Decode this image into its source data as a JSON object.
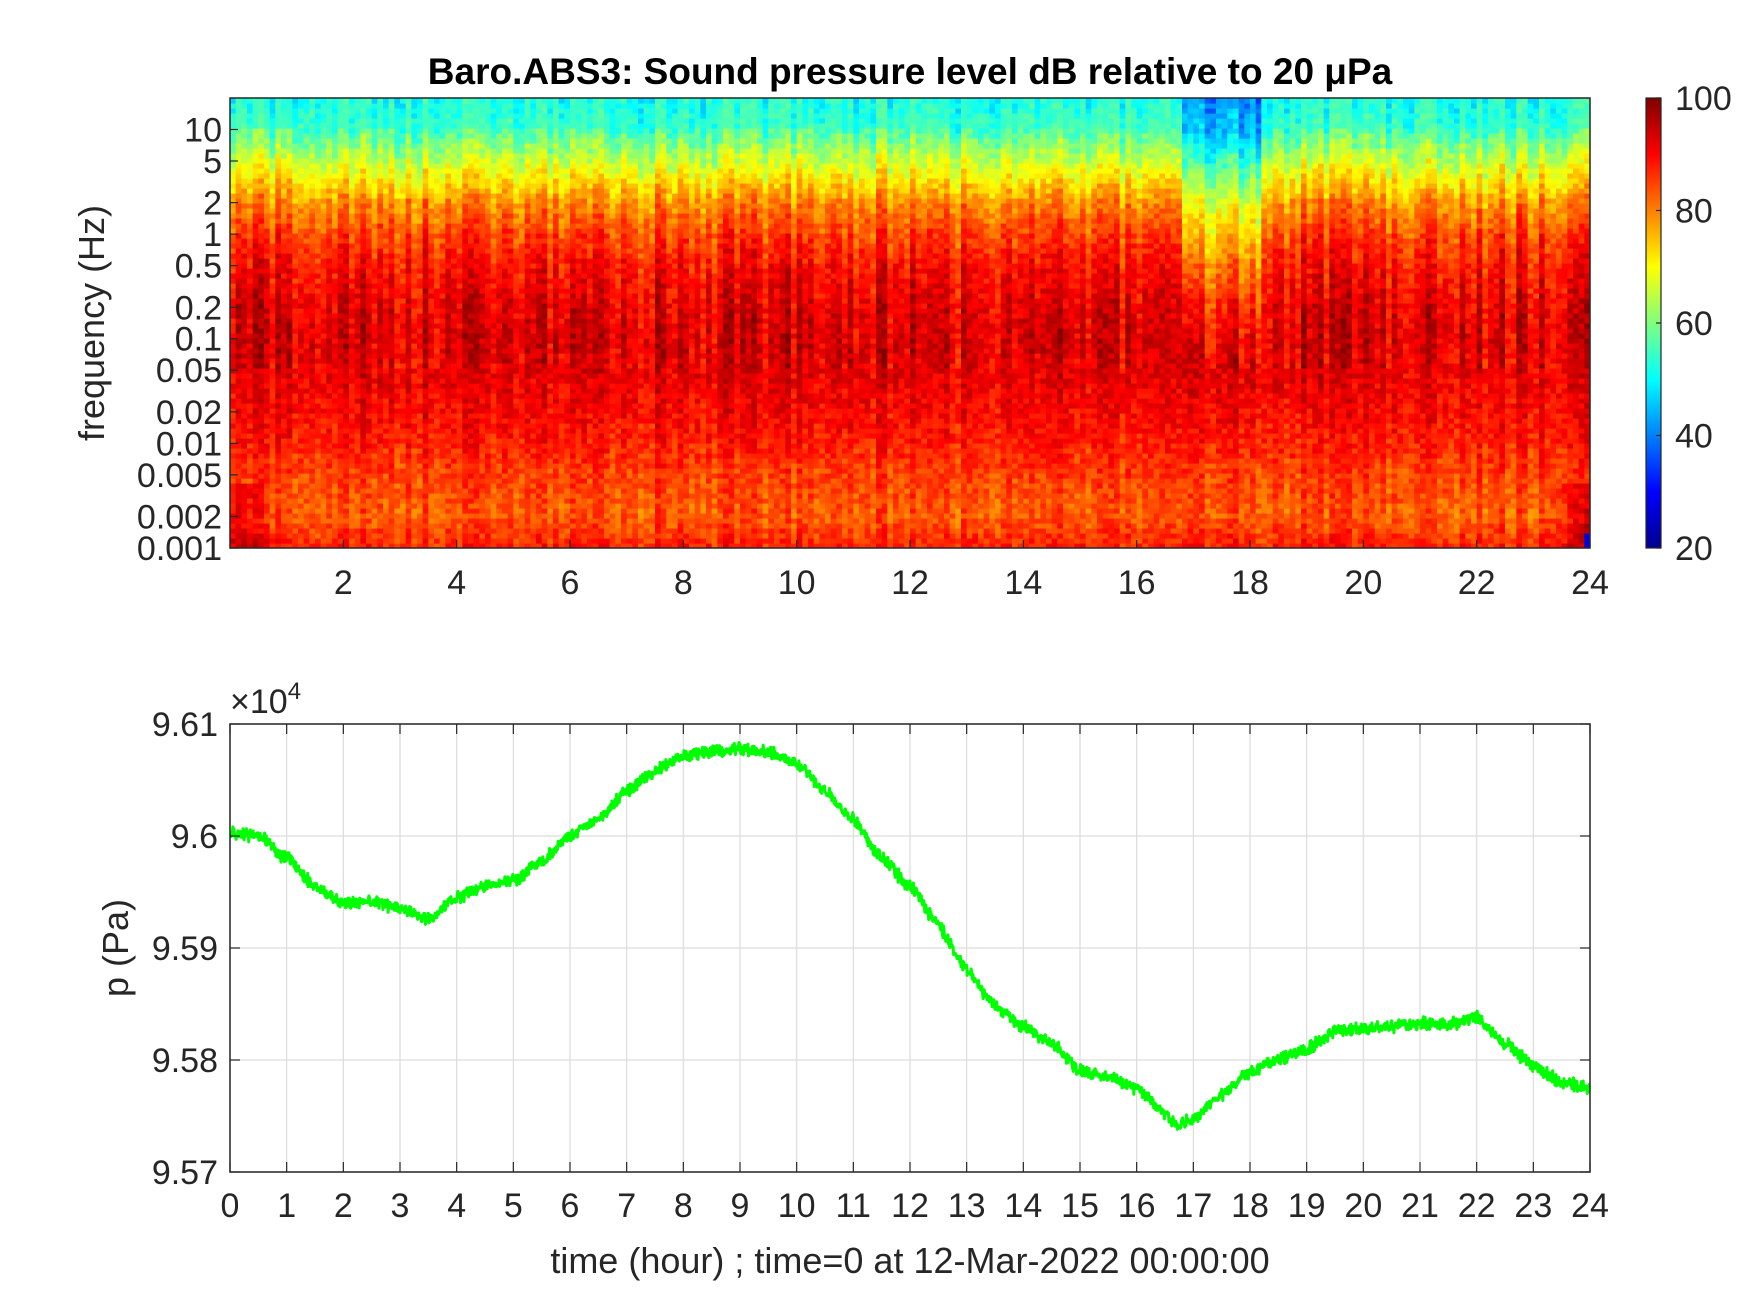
{
  "chart_data": [
    {
      "type": "heatmap",
      "title": "Baro.ABS3: Sound pressure level dB relative to 20 μPa",
      "xlabel": "",
      "ylabel": "frequency (Hz)",
      "xlim": [
        0,
        24
      ],
      "x_ticks": [
        2,
        4,
        6,
        8,
        10,
        12,
        14,
        16,
        18,
        20,
        22,
        24
      ],
      "y_scale": "log",
      "ylim": [
        0.001,
        20
      ],
      "y_ticks": [
        {
          "value": 10,
          "label": "10"
        },
        {
          "value": 5,
          "label": "5"
        },
        {
          "value": 2,
          "label": "2"
        },
        {
          "value": 1,
          "label": "1"
        },
        {
          "value": 0.5,
          "label": "0.5"
        },
        {
          "value": 0.2,
          "label": "0.2"
        },
        {
          "value": 0.1,
          "label": "0.1"
        },
        {
          "value": 0.05,
          "label": "0.05"
        },
        {
          "value": 0.02,
          "label": "0.02"
        },
        {
          "value": 0.01,
          "label": "0.01"
        },
        {
          "value": 0.005,
          "label": "0.005"
        },
        {
          "value": 0.002,
          "label": "0.002"
        },
        {
          "value": 0.001,
          "label": "0.001"
        }
      ],
      "colorbar": {
        "colormap": "jet",
        "range": [
          20,
          100
        ],
        "ticks": [
          20,
          40,
          60,
          80,
          100
        ],
        "unit": "dB"
      },
      "level_profile_by_frequency": [
        {
          "freq": 20,
          "db": 52
        },
        {
          "freq": 10,
          "db": 56
        },
        {
          "freq": 5,
          "db": 66
        },
        {
          "freq": 2,
          "db": 79
        },
        {
          "freq": 1,
          "db": 85
        },
        {
          "freq": 0.5,
          "db": 89
        },
        {
          "freq": 0.2,
          "db": 92
        },
        {
          "freq": 0.1,
          "db": 93
        },
        {
          "freq": 0.05,
          "db": 92
        },
        {
          "freq": 0.02,
          "db": 90
        },
        {
          "freq": 0.01,
          "db": 88
        },
        {
          "freq": 0.005,
          "db": 85
        },
        {
          "freq": 0.002,
          "db": 83
        },
        {
          "freq": 0.001,
          "db": 88
        }
      ],
      "quiet_interval_hours": [
        16.8,
        18.2
      ],
      "grid": false
    },
    {
      "type": "line",
      "title": "",
      "xlabel": "time (hour) ; time=0 at 12-Mar-2022 00:00:00",
      "ylabel": "p (Pa)",
      "y_multiplier_label": "×10",
      "y_multiplier_exponent": "4",
      "xlim": [
        0,
        24
      ],
      "ylim": [
        95700,
        96100
      ],
      "x_ticks": [
        0,
        1,
        2,
        3,
        4,
        5,
        6,
        7,
        8,
        9,
        10,
        11,
        12,
        13,
        14,
        15,
        16,
        17,
        18,
        19,
        20,
        21,
        22,
        23,
        24
      ],
      "y_ticks": [
        {
          "value": 95700,
          "label": "9.57"
        },
        {
          "value": 95800,
          "label": "9.58"
        },
        {
          "value": 95900,
          "label": "9.59"
        },
        {
          "value": 96000,
          "label": "9.6"
        },
        {
          "value": 96100,
          "label": "9.61"
        }
      ],
      "grid": true,
      "line_color": "#00ff00",
      "series": [
        {
          "x": [
            0,
            0.5,
            1,
            1.5,
            2,
            2.5,
            3,
            3.5,
            4,
            4.5,
            5,
            5.5,
            6,
            6.5,
            7,
            7.5,
            8,
            8.5,
            9,
            9.5,
            10,
            10.5,
            11,
            11.5,
            12,
            12.5,
            13,
            13.5,
            14,
            14.5,
            15,
            15.5,
            16,
            16.5,
            16.75,
            17,
            17.5,
            18,
            18.5,
            19,
            19.5,
            20,
            20.5,
            21,
            21.5,
            22,
            22.5,
            23,
            23.5,
            24
          ],
          "y": [
            96003,
            96000,
            95980,
            95955,
            95940,
            95942,
            95935,
            95925,
            95945,
            95955,
            95960,
            95978,
            96000,
            96015,
            96040,
            96058,
            96072,
            96075,
            96078,
            96075,
            96065,
            96040,
            96015,
            95980,
            95955,
            95920,
            95880,
            95848,
            95830,
            95815,
            95790,
            95785,
            95775,
            95752,
            95742,
            95748,
            95768,
            95790,
            95800,
            95810,
            95825,
            95828,
            95830,
            95833,
            95832,
            95838,
            95815,
            95795,
            95780,
            95775
          ]
        }
      ]
    }
  ]
}
